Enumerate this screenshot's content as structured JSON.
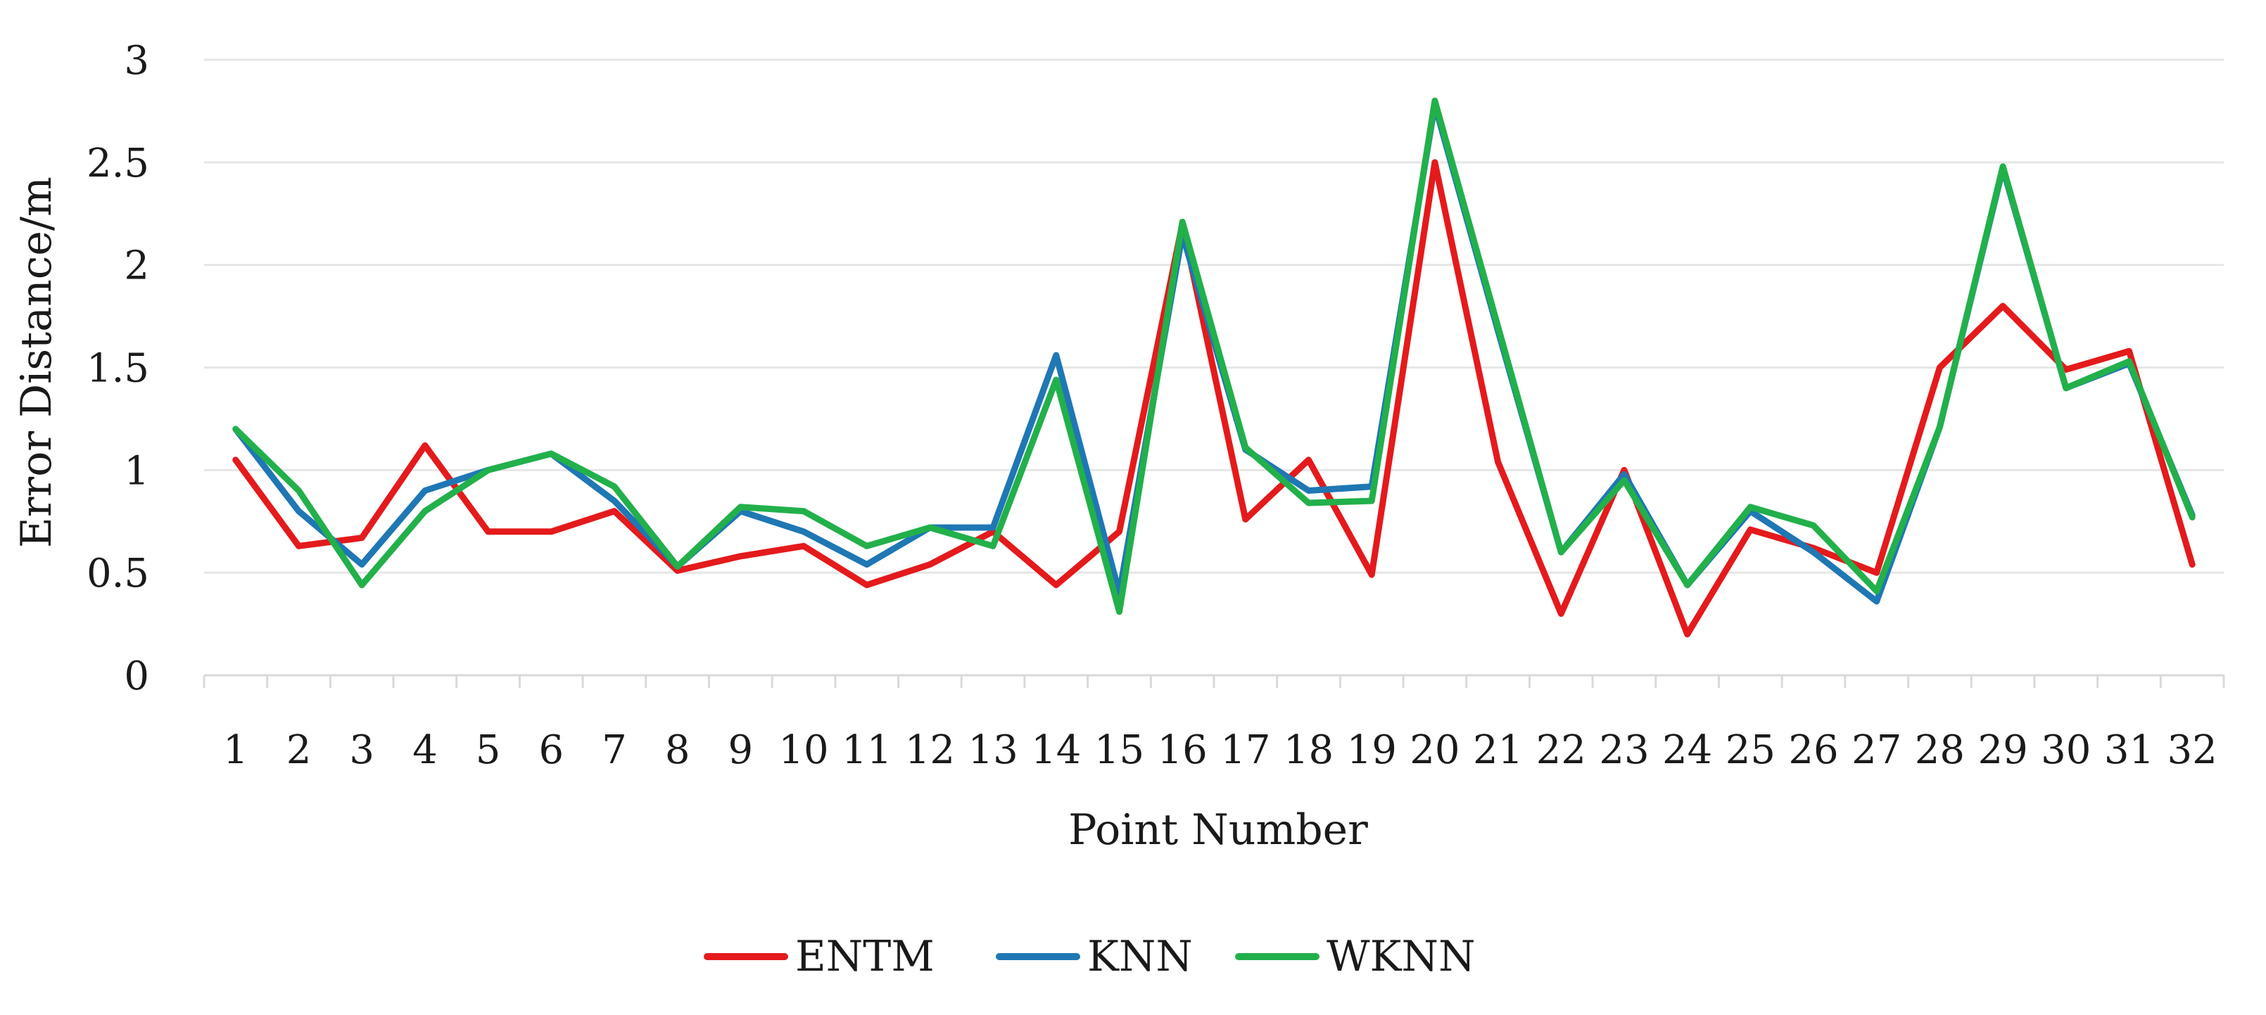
{
  "chart_data": {
    "type": "line",
    "xlabel": "Point Number",
    "ylabel": "Error Distance/m",
    "ylim": [
      0,
      3
    ],
    "yticks": [
      0,
      0.5,
      1,
      1.5,
      2,
      2.5,
      3
    ],
    "ytick_labels": [
      "0",
      "0.5",
      "1",
      "1.5",
      "2",
      "2.5",
      "3"
    ],
    "grid": true,
    "legend_position": "bottom",
    "categories": [
      "1",
      "2",
      "3",
      "4",
      "5",
      "6",
      "7",
      "8",
      "9",
      "10",
      "11",
      "12",
      "13",
      "14",
      "15",
      "16",
      "17",
      "18",
      "19",
      "20",
      "21",
      "22",
      "23",
      "24",
      "25",
      "26",
      "27",
      "28",
      "29",
      "30",
      "31",
      "32"
    ],
    "series": [
      {
        "name": "ENTM",
        "color": "#e41a1c",
        "values": [
          1.05,
          0.63,
          0.67,
          1.12,
          0.7,
          0.7,
          0.8,
          0.51,
          0.58,
          0.63,
          0.44,
          0.54,
          0.7,
          0.44,
          0.7,
          2.2,
          0.76,
          1.05,
          0.49,
          2.5,
          1.04,
          0.3,
          1.0,
          0.2,
          0.71,
          0.62,
          0.5,
          1.5,
          1.8,
          1.49,
          1.58,
          0.54
        ]
      },
      {
        "name": "KNN",
        "color": "#1f77b4",
        "values": [
          1.2,
          0.8,
          0.54,
          0.9,
          1.0,
          1.08,
          0.85,
          0.53,
          0.8,
          0.7,
          0.54,
          0.72,
          0.72,
          1.56,
          0.4,
          2.15,
          1.1,
          0.9,
          0.92,
          2.78,
          1.68,
          0.6,
          0.98,
          0.44,
          0.8,
          0.6,
          0.36,
          1.21,
          2.47,
          1.4,
          1.52,
          0.78
        ]
      },
      {
        "name": "WKNN",
        "color": "#22b04b",
        "values": [
          1.2,
          0.9,
          0.44,
          0.8,
          1.0,
          1.08,
          0.92,
          0.53,
          0.82,
          0.8,
          0.63,
          0.72,
          0.63,
          1.44,
          0.31,
          2.21,
          1.11,
          0.84,
          0.85,
          2.8,
          1.7,
          0.6,
          0.95,
          0.44,
          0.82,
          0.73,
          0.41,
          1.21,
          2.48,
          1.4,
          1.53,
          0.77
        ]
      }
    ]
  }
}
